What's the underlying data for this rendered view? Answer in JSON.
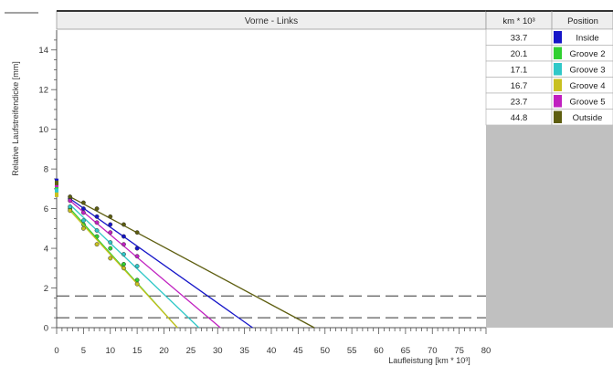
{
  "chart_data": {
    "type": "line",
    "title": "Vorne - Links",
    "xlabel": "Laufleistung [km * 10³]",
    "ylabel": "Relative Laufstreifendicke [mm]",
    "xlim": [
      0,
      80
    ],
    "ylim": [
      0,
      15
    ],
    "x_ticks": [
      "0",
      "5",
      "10",
      "15",
      "20",
      "25",
      "30",
      "35",
      "40",
      "45",
      "50",
      "55",
      "60",
      "65",
      "70",
      "75",
      "80"
    ],
    "y_ticks": [
      "0",
      "2",
      "4",
      "6",
      "8",
      "10",
      "12",
      "14"
    ],
    "grid": false,
    "threshold_lines": [
      1.6,
      0.5
    ],
    "table": {
      "header_km": "km * 10³",
      "header_position": "Position",
      "rows": [
        {
          "km": "33.7",
          "position": "Inside",
          "color": "#1515c8"
        },
        {
          "km": "20.1",
          "position": "Groove 2",
          "color": "#30d030"
        },
        {
          "km": "17.1",
          "position": "Groove 3",
          "color": "#30c8c8"
        },
        {
          "km": "16.7",
          "position": "Groove 4",
          "color": "#c8c020"
        },
        {
          "km": "23.7",
          "position": "Groove 5",
          "color": "#c020c0"
        },
        {
          "km": "44.8",
          "position": "Outside",
          "color": "#5e5e10"
        }
      ]
    },
    "series": [
      {
        "color": "#1515c8",
        "line_x": [
          2.5,
          36.5
        ],
        "line_y": [
          6.5,
          0
        ],
        "x": [
          0,
          2.5,
          5,
          7.5,
          10,
          12.5,
          15
        ],
        "y": [
          7.4,
          6.5,
          6.0,
          5.6,
          5.2,
          4.6,
          4.0
        ]
      },
      {
        "color": "#30d030",
        "line_x": [
          2.5,
          22.5
        ],
        "line_y": [
          6.0,
          0
        ],
        "x": [
          0,
          2.5,
          5,
          7.5,
          10,
          12.5,
          15
        ],
        "y": [
          7.0,
          6.0,
          5.2,
          4.6,
          4.0,
          3.2,
          2.4
        ]
      },
      {
        "color": "#30c8c8",
        "line_x": [
          2.5,
          26.5
        ],
        "line_y": [
          6.2,
          0
        ],
        "x": [
          0,
          2.5,
          5,
          7.5,
          10,
          12.5,
          15
        ],
        "y": [
          6.9,
          6.1,
          5.4,
          4.9,
          4.3,
          3.7,
          3.1
        ]
      },
      {
        "color": "#c8c020",
        "line_x": [
          2.5,
          22.5
        ],
        "line_y": [
          5.9,
          0
        ],
        "x": [
          0,
          2.5,
          5,
          7.5,
          10,
          12.5,
          15
        ],
        "y": [
          6.7,
          5.9,
          5.0,
          4.2,
          3.5,
          3.0,
          2.2
        ]
      },
      {
        "color": "#c020c0",
        "line_x": [
          2.5,
          30.5
        ],
        "line_y": [
          6.4,
          0
        ],
        "x": [
          0,
          2.5,
          5,
          7.5,
          10,
          12.5,
          15
        ],
        "y": [
          7.2,
          6.4,
          5.8,
          5.3,
          4.8,
          4.2,
          3.6
        ]
      },
      {
        "color": "#5e5e10",
        "line_x": [
          2.5,
          48.0
        ],
        "line_y": [
          6.6,
          0
        ],
        "x": [
          0,
          2.5,
          5,
          7.5,
          10,
          12.5,
          15
        ],
        "y": [
          7.3,
          6.6,
          6.3,
          6.0,
          5.6,
          5.2,
          4.8
        ]
      }
    ]
  }
}
